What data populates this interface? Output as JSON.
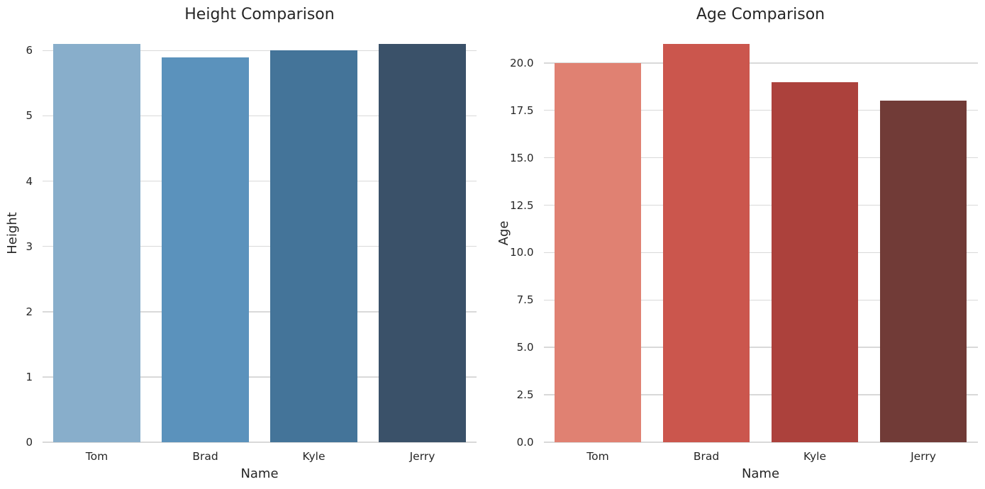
{
  "figure": {
    "background": "#ffffff",
    "grid_color": "#d9d9d9",
    "text_color": "#262626"
  },
  "chart_data": [
    {
      "type": "bar",
      "title": "Height Comparison",
      "xlabel": "Name",
      "ylabel": "Height",
      "categories": [
        "Tom",
        "Brad",
        "Kyle",
        "Jerry"
      ],
      "values": [
        6.1,
        5.9,
        6.0,
        6.1
      ],
      "yticks": [
        0,
        1,
        2,
        3,
        4,
        5,
        6
      ],
      "ytick_labels": [
        "0",
        "1",
        "2",
        "3",
        "4",
        "5",
        "6"
      ],
      "ylim": [
        0,
        6.405
      ],
      "grid": true,
      "legend": false,
      "bar_colors": [
        "#88aecb",
        "#5b92bc",
        "#447499",
        "#3a5169"
      ]
    },
    {
      "type": "bar",
      "title": "Age Comparison",
      "xlabel": "Name",
      "ylabel": "Age",
      "categories": [
        "Tom",
        "Brad",
        "Kyle",
        "Jerry"
      ],
      "values": [
        20,
        21,
        19,
        18
      ],
      "yticks": [
        0,
        2.5,
        5,
        7.5,
        10,
        12.5,
        15,
        17.5,
        20
      ],
      "ytick_labels": [
        "0.0",
        "2.5",
        "5.0",
        "7.5",
        "10.0",
        "12.5",
        "15.0",
        "17.5",
        "20.0"
      ],
      "ylim": [
        0,
        22.05
      ],
      "grid": true,
      "legend": false,
      "bar_colors": [
        "#e08172",
        "#cb564d",
        "#ac413c",
        "#713b37"
      ]
    }
  ]
}
